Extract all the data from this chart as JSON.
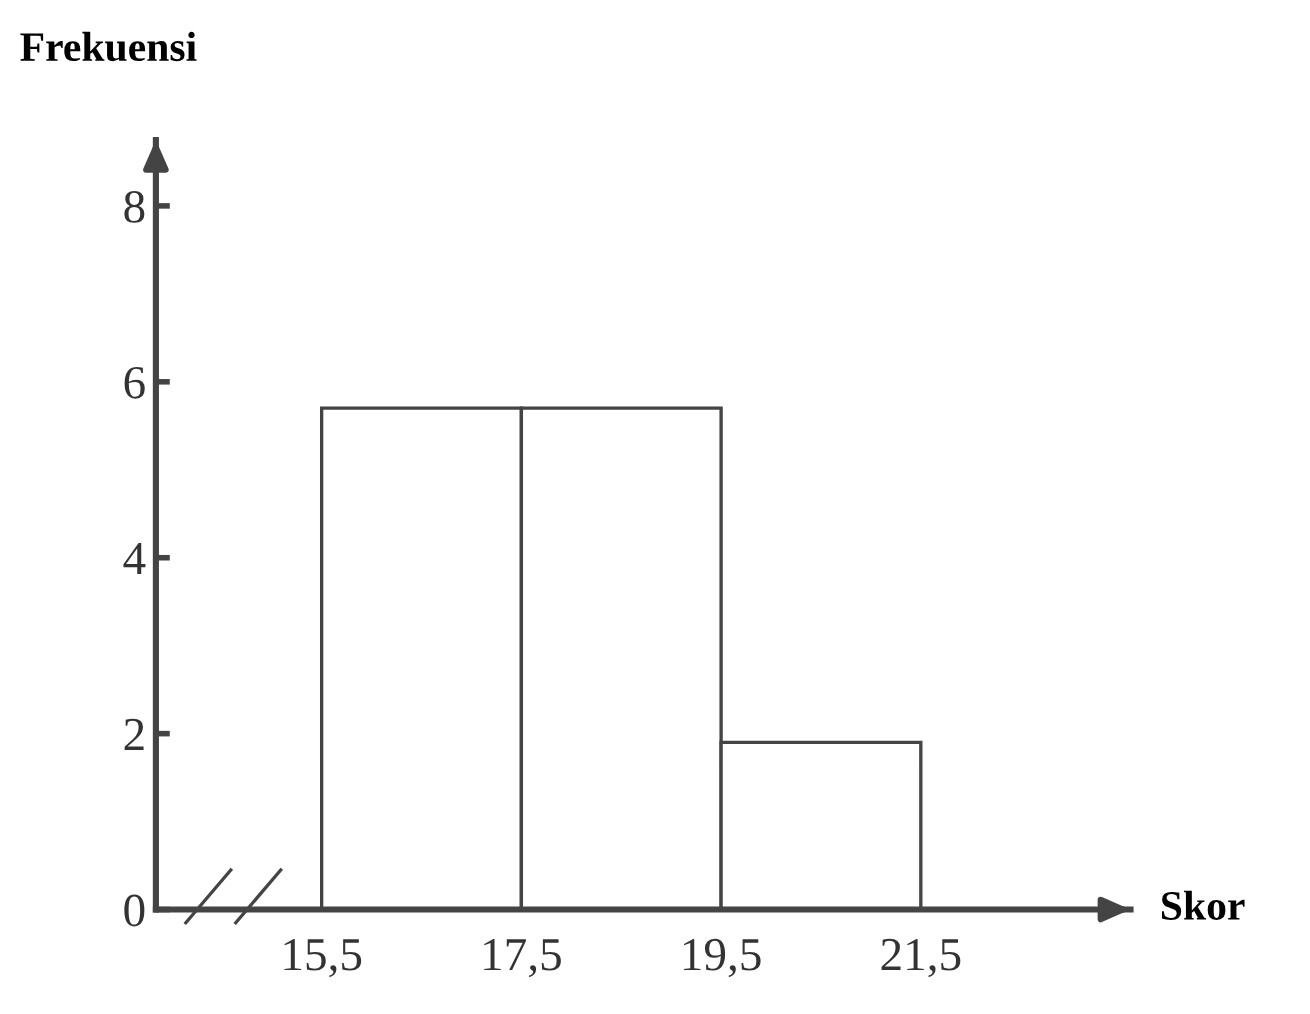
{
  "chart_data": {
    "type": "histogram",
    "xlabel": "Skor",
    "ylabel": "Frekuensi",
    "bins": [
      15.5,
      17.5,
      19.5,
      21.5
    ],
    "values": [
      5.7,
      5.7,
      1.9
    ],
    "color": "#ffffff",
    "xlim": [
      13.84,
      23.6
    ],
    "ylim": [
      0,
      8.75
    ],
    "xticks": [
      {
        "value": 15.5,
        "label": "15,5"
      },
      {
        "value": 17.5,
        "label": "17,5"
      },
      {
        "value": 19.5,
        "label": "19,5"
      },
      {
        "value": 21.5,
        "label": "21,5"
      }
    ],
    "yticks": [
      0,
      2,
      4,
      6,
      8
    ],
    "grid": false,
    "legend": false
  }
}
